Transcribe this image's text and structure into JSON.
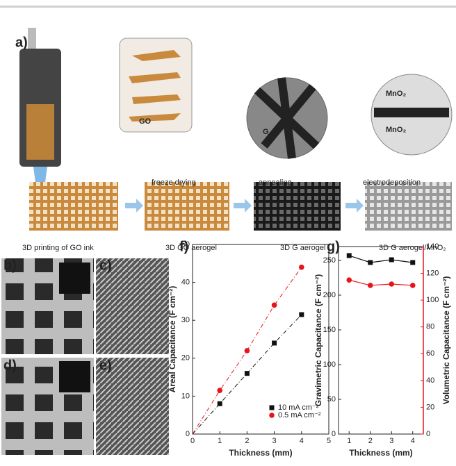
{
  "figure": {
    "panel_labels": [
      "a)",
      "b)",
      "c)",
      "d)",
      "e)",
      "f)",
      "g)"
    ],
    "insets": [
      "GO",
      "G",
      "MnO₂",
      "G",
      "MnO₂"
    ],
    "steps": [
      "freeze drying",
      "annealing",
      "electrodeposition"
    ],
    "stages": [
      "3D printing of GO ink",
      "3D GO aerogel",
      "3D G aerogel",
      "3D G aerogel/MnO₂"
    ]
  },
  "chart_data": [
    {
      "type": "scatter",
      "x_label": "Thickness (mm)",
      "y_label": "Areal Capacitance (F cm⁻²)",
      "x": [
        1,
        2,
        3,
        4
      ],
      "xlim": [
        0,
        5
      ],
      "xticks": [
        0,
        1,
        2,
        3,
        4,
        5
      ],
      "ylim": [
        0,
        50
      ],
      "yticks": [
        0,
        10,
        20,
        30,
        40,
        50
      ],
      "legend": "lower right",
      "series": [
        {
          "name": "10 mA cm⁻²",
          "color": "#111111",
          "marker": "square",
          "values": [
            8,
            16,
            24,
            31.5
          ]
        },
        {
          "name": "0.5 mA cm⁻²",
          "color": "#e8141b",
          "marker": "circle",
          "values": [
            11.5,
            22,
            34,
            44
          ]
        }
      ]
    },
    {
      "type": "line",
      "x_label": "Thickness (mm)",
      "y_label": "Gravimetric Capacitance (F cm⁻²)",
      "y2_label": "Volumetric Capacitance (F cm⁻²)",
      "x": [
        1,
        2,
        3,
        4
      ],
      "xlim": [
        0.5,
        4.5
      ],
      "xticks": [
        1,
        2,
        3,
        4
      ],
      "ylim": [
        0,
        270
      ],
      "yticks": [
        0,
        50,
        100,
        150,
        200,
        250
      ],
      "y2lim": [
        0,
        140
      ],
      "y2ticks": [
        0,
        20,
        40,
        60,
        80,
        100,
        120,
        140
      ],
      "series": [
        {
          "color": "#111111",
          "marker": "square",
          "values": [
            257,
            247,
            251,
            247
          ]
        },
        {
          "color": "#e8141b",
          "marker": "circle",
          "axis": "y2",
          "values": [
            115,
            111,
            112,
            111
          ]
        }
      ]
    }
  ]
}
